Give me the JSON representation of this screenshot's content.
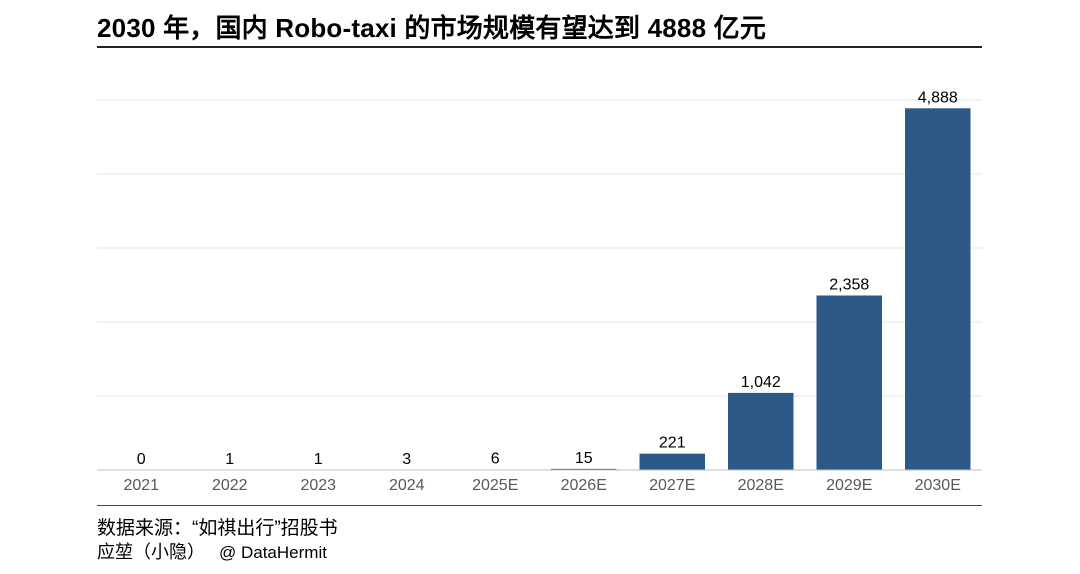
{
  "title": "2030 年，国内 Robo-taxi 的市场规模有望达到 4888 亿元",
  "footer": {
    "source": "数据来源：“如祺出行”招股书",
    "credit": "应堃（小隐）",
    "handle": "@ DataHermit"
  },
  "colors": {
    "bar": "#2c5985",
    "grid": "#e6e6e6",
    "axis": "#bfbfbf",
    "tick_text": "#595959"
  },
  "chart_data": {
    "type": "bar",
    "title": "2030 年，国内 Robo-taxi 的市场规模有望达到 4888 亿元",
    "xlabel": "",
    "ylabel": "",
    "categories": [
      "2021",
      "2022",
      "2023",
      "2024",
      "2025E",
      "2026E",
      "2027E",
      "2028E",
      "2029E",
      "2030E"
    ],
    "values": [
      0,
      1,
      1,
      3,
      6,
      15,
      221,
      1042,
      2358,
      4888
    ],
    "data_labels": [
      "0",
      "1",
      "1",
      "3",
      "6",
      "15",
      "221",
      "1,042",
      "2,358",
      "4,888"
    ],
    "ylim": [
      0,
      5000
    ],
    "grid": true,
    "legend": "none"
  }
}
